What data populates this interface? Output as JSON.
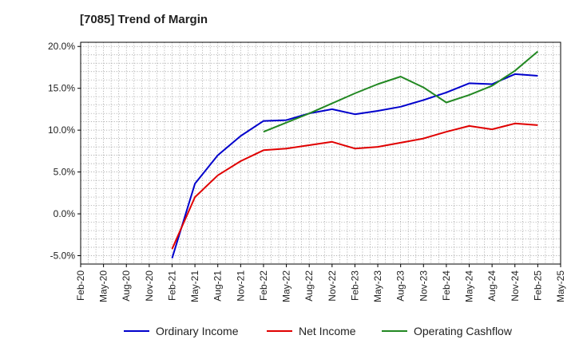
{
  "chart_data": {
    "type": "line",
    "title": "[7085]  Trend of Margin",
    "xlabel": "",
    "ylabel": "",
    "x_ticks": [
      "Feb-20",
      "May-20",
      "Aug-20",
      "Nov-20",
      "Feb-21",
      "May-21",
      "Aug-21",
      "Nov-21",
      "Feb-22",
      "May-22",
      "Aug-22",
      "Nov-22",
      "Feb-23",
      "May-23",
      "Aug-23",
      "Nov-23",
      "Feb-24",
      "May-24",
      "Aug-24",
      "Nov-24",
      "Feb-25",
      "May-25"
    ],
    "y_ticks": [
      "-5.0%",
      "0.0%",
      "5.0%",
      "10.0%",
      "15.0%",
      "20.0%"
    ],
    "y_tick_values": [
      -5,
      0,
      5,
      10,
      15,
      20
    ],
    "ylim": [
      -6,
      20.5
    ],
    "grid": true,
    "legend_position": "bottom",
    "series": [
      {
        "name": "Ordinary Income",
        "color": "#0000cc",
        "points": [
          [
            "Feb-21",
            -5.3
          ],
          [
            "May-21",
            3.6
          ],
          [
            "Aug-21",
            7.0
          ],
          [
            "Nov-21",
            9.3
          ],
          [
            "Feb-22",
            11.1
          ],
          [
            "May-22",
            11.2
          ],
          [
            "Aug-22",
            12.0
          ],
          [
            "Nov-22",
            12.5
          ],
          [
            "Feb-23",
            11.9
          ],
          [
            "May-23",
            12.3
          ],
          [
            "Aug-23",
            12.8
          ],
          [
            "Nov-23",
            13.6
          ],
          [
            "Feb-24",
            14.5
          ],
          [
            "May-24",
            15.6
          ],
          [
            "Aug-24",
            15.5
          ],
          [
            "Nov-24",
            16.7
          ],
          [
            "Feb-25",
            16.5
          ]
        ]
      },
      {
        "name": "Net Income",
        "color": "#e00000",
        "points": [
          [
            "Feb-21",
            -4.2
          ],
          [
            "May-21",
            2.0
          ],
          [
            "Aug-21",
            4.6
          ],
          [
            "Nov-21",
            6.3
          ],
          [
            "Feb-22",
            7.6
          ],
          [
            "May-22",
            7.8
          ],
          [
            "Aug-22",
            8.2
          ],
          [
            "Nov-22",
            8.6
          ],
          [
            "Feb-23",
            7.8
          ],
          [
            "May-23",
            8.0
          ],
          [
            "Aug-23",
            8.5
          ],
          [
            "Nov-23",
            9.0
          ],
          [
            "Feb-24",
            9.8
          ],
          [
            "May-24",
            10.5
          ],
          [
            "Aug-24",
            10.1
          ],
          [
            "Nov-24",
            10.8
          ],
          [
            "Feb-25",
            10.6
          ]
        ]
      },
      {
        "name": "Operating Cashflow",
        "color": "#228822",
        "points": [
          [
            "Feb-22",
            9.8
          ],
          [
            "May-22",
            10.9
          ],
          [
            "Aug-22",
            12.0
          ],
          [
            "Nov-22",
            13.2
          ],
          [
            "Feb-23",
            14.4
          ],
          [
            "May-23",
            15.5
          ],
          [
            "Aug-23",
            16.4
          ],
          [
            "Nov-23",
            15.1
          ],
          [
            "Feb-24",
            13.3
          ],
          [
            "May-24",
            14.2
          ],
          [
            "Aug-24",
            15.3
          ],
          [
            "Nov-24",
            17.1
          ],
          [
            "Feb-25",
            19.4
          ]
        ]
      }
    ]
  }
}
